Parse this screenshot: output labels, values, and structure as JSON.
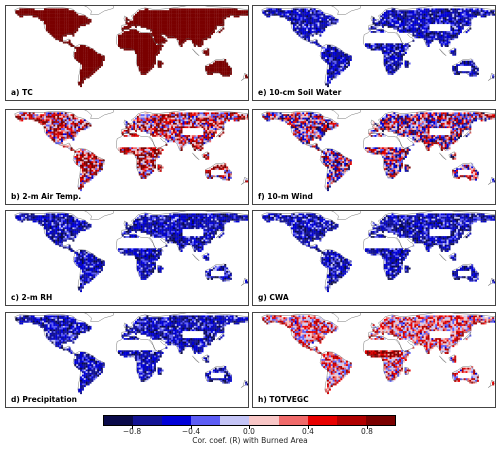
{
  "chart_data": {
    "type": "heatmap",
    "description_type": "global correlation maps",
    "panels": [
      {
        "id": "a",
        "label": "a) TC",
        "pattern": "uniform_positive",
        "value_level": 0.9
      },
      {
        "id": "b",
        "label": "b) 2-m Air Temp.",
        "pattern": "mixed_positive"
      },
      {
        "id": "c",
        "label": "c) 2-m RH",
        "pattern": "mostly_negative"
      },
      {
        "id": "d",
        "label": "d) Precipitation",
        "pattern": "mostly_negative"
      },
      {
        "id": "e",
        "label": "e) 10-cm Soil Water",
        "pattern": "mostly_negative"
      },
      {
        "id": "f",
        "label": "f) 10-m Wind",
        "pattern": "mixed"
      },
      {
        "id": "g",
        "label": "g) CWA",
        "pattern": "mostly_negative"
      },
      {
        "id": "h",
        "label": "h) TOTVEGC",
        "pattern": "mixed_light"
      }
    ],
    "colorbar": {
      "label": "Cor. coef. (R) with Burned Area",
      "range": [
        -1.0,
        1.0
      ],
      "ticks": [
        -0.8,
        -0.4,
        0.0,
        0.4,
        0.8
      ],
      "tick_labels": [
        "−0.8",
        "−0.4",
        "0.0",
        "0.4",
        "0.8"
      ],
      "colors": [
        "#0a0a4a",
        "#131394",
        "#0000d8",
        "#5d5df5",
        "#c4c4f6",
        "#f8c6c6",
        "#f06a6a",
        "#e80000",
        "#b00000",
        "#7a0000"
      ]
    }
  }
}
